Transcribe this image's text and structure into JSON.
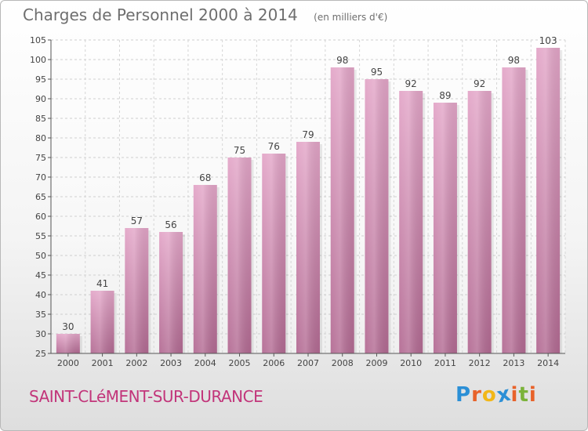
{
  "chart_data": {
    "type": "bar",
    "title": "Charges de Personnel 2000 à 2014",
    "subtitle": "(en milliers d'€)",
    "categories": [
      "2000",
      "2001",
      "2002",
      "2003",
      "2004",
      "2005",
      "2006",
      "2007",
      "2008",
      "2009",
      "2010",
      "2011",
      "2012",
      "2013",
      "2014"
    ],
    "values": [
      30,
      41,
      57,
      56,
      68,
      75,
      76,
      79,
      98,
      95,
      92,
      89,
      92,
      98,
      103
    ],
    "ylim": [
      25,
      105
    ],
    "yticks": [
      25,
      30,
      35,
      40,
      45,
      50,
      55,
      60,
      65,
      70,
      75,
      80,
      85,
      90,
      95,
      100,
      105
    ],
    "grid": true,
    "bar_color": "#d989b5"
  },
  "footer": {
    "commune": "SAINT-CLéMENT-SUR-DURANCE",
    "logo_letters": [
      "P",
      "r",
      "o",
      "x",
      "i",
      "t",
      "i"
    ],
    "logo_colors": [
      "#2b8fd6",
      "#e8622a",
      "#f2b718",
      "#2b8fd6",
      "#e8622a",
      "#7bb33a",
      "#e8622a"
    ]
  }
}
